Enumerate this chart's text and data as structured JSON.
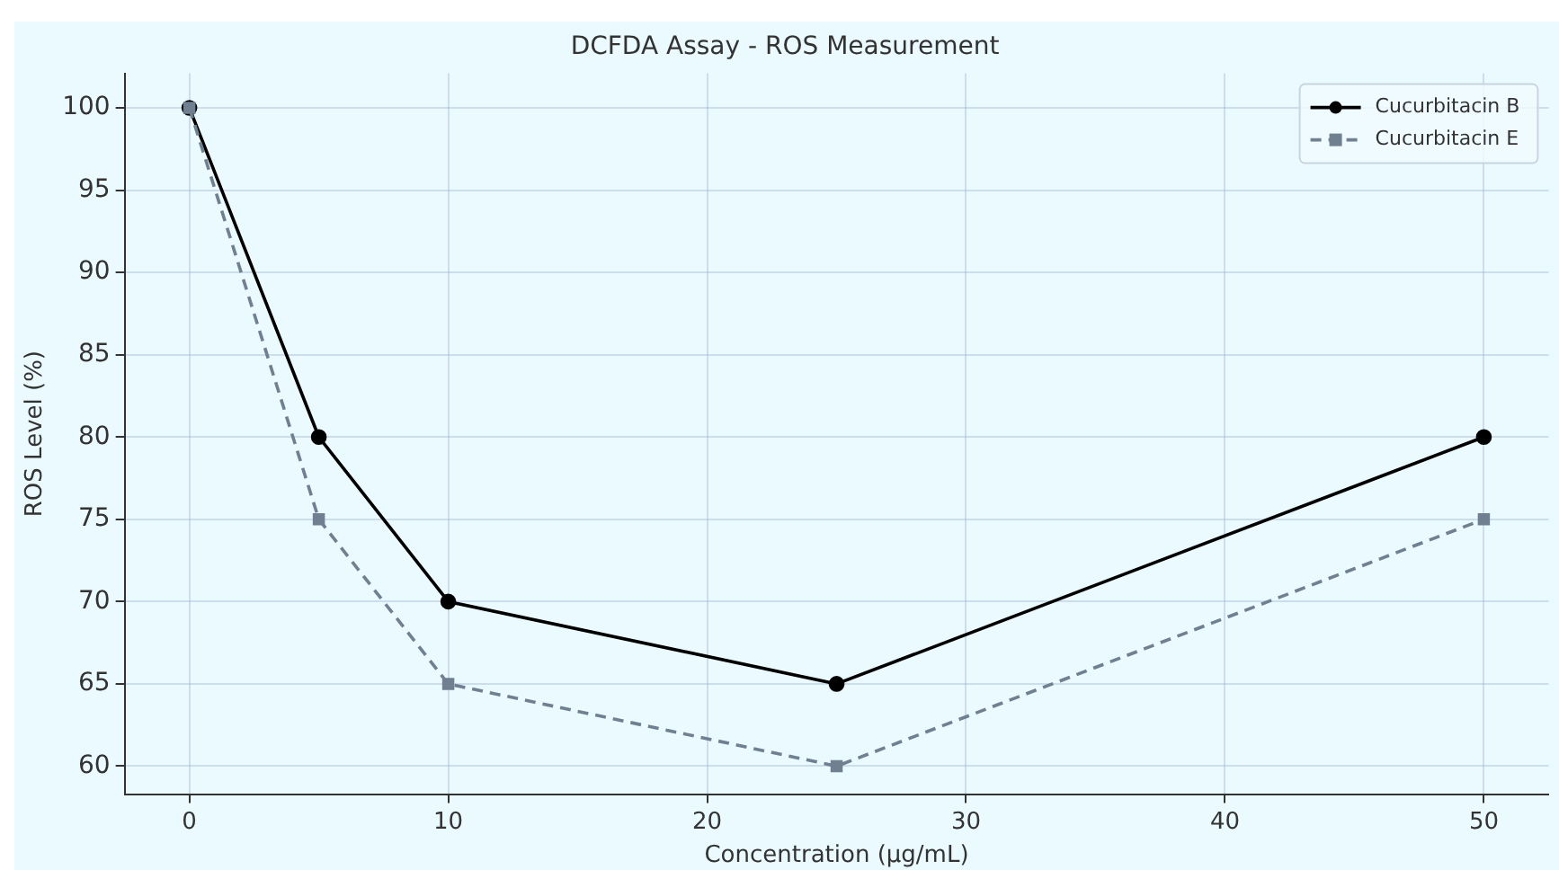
{
  "chart_data": {
    "type": "line",
    "title": "DCFDA Assay - ROS Measurement",
    "xlabel": "Concentration (µg/mL)",
    "ylabel": "ROS Level (%)",
    "x": [
      0,
      5,
      10,
      25,
      50
    ],
    "series": [
      {
        "name": "Cucurbitacin B",
        "color": "#000000",
        "values": [
          100,
          80,
          70,
          65,
          80
        ],
        "marker": "circle",
        "line_style": "solid"
      },
      {
        "name": "Cucurbitacin E",
        "color": "#708090",
        "values": [
          100,
          75,
          65,
          60,
          75
        ],
        "marker": "square",
        "line_style": "dashed"
      }
    ],
    "xlim": [
      -2.5,
      52.5
    ],
    "xticks": [
      0,
      10,
      20,
      30,
      40,
      50
    ],
    "ylim": [
      58.3,
      102.1
    ],
    "yticks": [
      60,
      65,
      70,
      75,
      80,
      85,
      90,
      95,
      100
    ],
    "grid": true,
    "legend": "top right"
  }
}
